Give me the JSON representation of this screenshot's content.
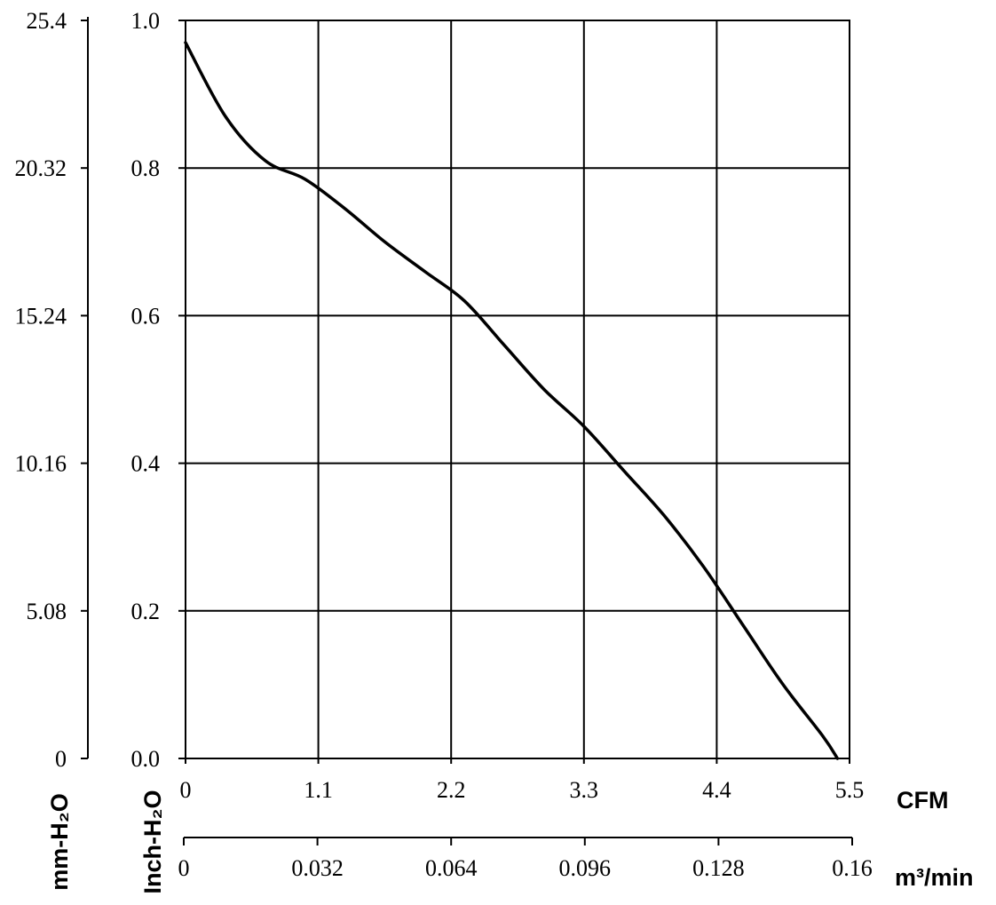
{
  "chart_data": {
    "type": "line",
    "grid": true,
    "x_axes": {
      "cfm": {
        "label": "CFM",
        "range": [
          0,
          5.5
        ],
        "ticks": [
          "0",
          "1.1",
          "2.2",
          "3.3",
          "4.4",
          "5.5"
        ]
      },
      "m3min": {
        "label": "m³/min",
        "range": [
          0,
          0.16
        ],
        "ticks": [
          "0",
          "0.032",
          "0.064",
          "0.096",
          "0.128",
          "0.16"
        ]
      }
    },
    "y_axes": {
      "inch": {
        "label": "Inch-H₂O",
        "range": [
          0,
          1.0
        ],
        "ticks": [
          "0.0",
          "0.2",
          "0.4",
          "0.6",
          "0.8",
          "1.0"
        ]
      },
      "mm": {
        "label": "mm-H₂O",
        "range": [
          0,
          25.4
        ],
        "ticks": [
          "0",
          "5.08",
          "10.16",
          "15.24",
          "20.32",
          "25.4"
        ]
      }
    },
    "series": [
      {
        "x_units": "CFM",
        "y_units": "Inch-H2O",
        "x": [
          0,
          0.33,
          0.66,
          0.99,
          1.32,
          1.65,
          1.98,
          2.31,
          2.64,
          2.97,
          3.3,
          3.63,
          3.96,
          4.29,
          4.62,
          4.95,
          5.28,
          5.4
        ],
        "y": [
          0.97,
          0.87,
          0.81,
          0.785,
          0.745,
          0.7,
          0.66,
          0.62,
          0.56,
          0.5,
          0.45,
          0.39,
          0.33,
          0.26,
          0.18,
          0.1,
          0.03,
          0.0
        ]
      }
    ]
  }
}
